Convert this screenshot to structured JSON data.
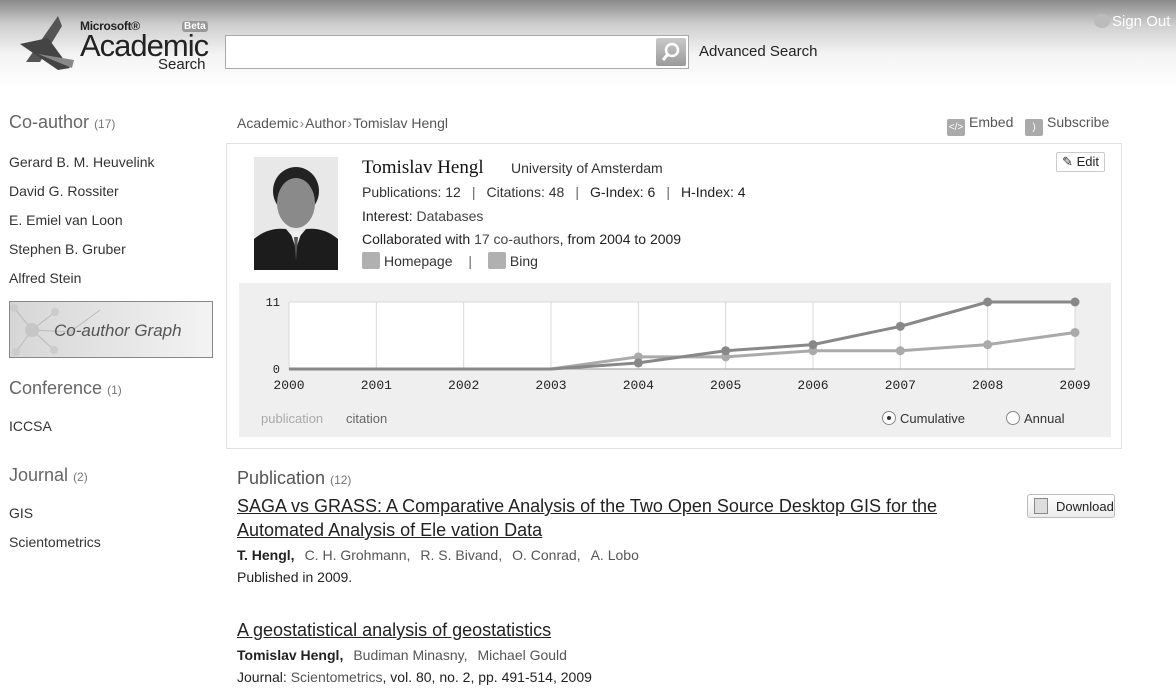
{
  "header": {
    "logo_ms": "Microsoft®",
    "logo_academic": "Academic",
    "logo_search": "Search",
    "logo_beta": "Beta",
    "search_placeholder": "",
    "advanced_search": "Advanced Search",
    "sign_out": "Sign Out"
  },
  "sidebar": {
    "coauthor": {
      "title": "Co-author",
      "count": "(17)",
      "items": [
        "Gerard B. M. Heuvelink",
        "David G. Rossiter",
        "E. Emiel van Loon",
        "Stephen B. Gruber",
        "Alfred Stein"
      ]
    },
    "graph_label": "Co-author Graph",
    "conference": {
      "title": "Conference",
      "count": "(1)",
      "items": [
        "ICCSA"
      ]
    },
    "journal": {
      "title": "Journal",
      "count": "(2)",
      "items": [
        "GIS",
        "Scientometrics"
      ]
    }
  },
  "breadcrumb": {
    "items": [
      "Academic",
      "Author",
      "Tomislav Hengl"
    ],
    "sep": "›"
  },
  "actions": {
    "embed": "Embed",
    "subscribe": "Subscribe",
    "edit": "Edit"
  },
  "profile": {
    "name": "Tomislav Hengl",
    "affiliation": "University of Amsterdam",
    "publications": "Publications: 12",
    "citations": "Citations: 48",
    "g_index": "G-Index: 6",
    "h_index": "H-Index: 4",
    "interest_label": "Interest:",
    "interest_value": "Databases",
    "collab_prefix": "Collaborated with",
    "collab_link": "17 co-authors",
    "collab_suffix": ", from 2004 to 2009",
    "homepage": "Homepage",
    "bing": "Bing"
  },
  "chart_data": {
    "type": "line",
    "x": [
      2000,
      2001,
      2002,
      2003,
      2004,
      2005,
      2006,
      2007,
      2008,
      2009
    ],
    "ylim": [
      0,
      11
    ],
    "y_ticks": [
      "11",
      "0"
    ],
    "series": [
      {
        "name": "publication",
        "color": "#888888",
        "values": [
          0,
          0,
          0,
          0,
          1,
          3,
          4,
          7,
          11,
          11
        ]
      },
      {
        "name": "citation",
        "color": "#aaaaaa",
        "values": [
          0,
          0,
          0,
          0,
          2,
          2,
          3,
          3,
          4,
          6
        ]
      }
    ],
    "legend": [
      "publication",
      "citation"
    ],
    "mode_options": [
      "Cumulative",
      "Annual"
    ],
    "mode_selected": "Cumulative",
    "grid": true
  },
  "publications": {
    "title": "Publication",
    "count": "(12)",
    "download": "Download",
    "items": [
      {
        "title": "SAGA vs GRASS: A Comparative Analysis of the Two Open Source Desktop GIS for the Automated Analysis of Ele vation Data",
        "authors": [
          "T. Hengl",
          "C. H. Grohmann",
          "R. S. Bivand",
          "O. Conrad",
          "A. Lobo"
        ],
        "meta": "Published in 2009."
      },
      {
        "title": "A geostatistical analysis of geostatistics",
        "authors": [
          "Tomislav Hengl",
          "Budiman Minasny",
          "Michael Gould"
        ],
        "meta_prefix": "Journal:",
        "journal": "Scientometrics",
        "meta_suffix": ", vol. 80, no. 2, pp. 491-514, 2009"
      }
    ]
  }
}
